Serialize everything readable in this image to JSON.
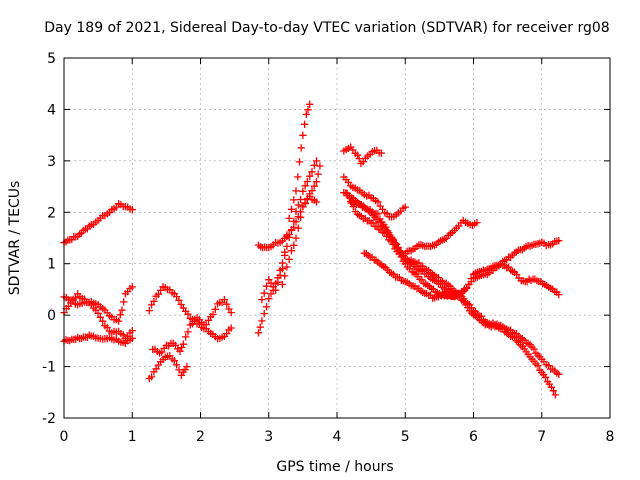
{
  "chart_data": {
    "type": "scatter",
    "title": "Day 189 of 2021, Sidereal Day-to-day VTEC variation (SDTVAR) for receiver rg08",
    "xlabel": "GPS time / hours",
    "ylabel": "SDTVAR / TECUs",
    "xlim": [
      0,
      8
    ],
    "ylim": [
      -2,
      5
    ],
    "xticks": [
      "0",
      "1",
      "2",
      "3",
      "4",
      "5",
      "6",
      "7",
      "8"
    ],
    "yticks": [
      "-2",
      "-1",
      "0",
      "1",
      "2",
      "3",
      "4",
      "5"
    ],
    "grid": true,
    "marker": "+",
    "color": "#ff0000",
    "series": [
      {
        "name": "s1",
        "points": [
          [
            0.0,
            1.4
          ],
          [
            0.2,
            1.55
          ],
          [
            0.4,
            1.75
          ],
          [
            0.5,
            1.85
          ],
          [
            0.6,
            1.95
          ],
          [
            0.7,
            2.05
          ],
          [
            0.8,
            2.15
          ],
          [
            0.9,
            2.1
          ],
          [
            1.0,
            2.05
          ]
        ]
      },
      {
        "name": "s2",
        "points": [
          [
            0.0,
            0.35
          ],
          [
            0.1,
            0.3
          ],
          [
            0.2,
            0.2
          ],
          [
            0.3,
            0.25
          ],
          [
            0.4,
            0.25
          ],
          [
            0.5,
            0.2
          ],
          [
            0.6,
            0.1
          ],
          [
            0.7,
            -0.05
          ],
          [
            0.8,
            -0.1
          ],
          [
            0.85,
            0.1
          ],
          [
            0.9,
            0.4
          ],
          [
            1.0,
            0.55
          ]
        ]
      },
      {
        "name": "s3",
        "points": [
          [
            0.0,
            0.05
          ],
          [
            0.1,
            0.25
          ],
          [
            0.2,
            0.4
          ],
          [
            0.3,
            0.3
          ],
          [
            0.4,
            0.2
          ],
          [
            0.5,
            0.05
          ],
          [
            0.6,
            -0.2
          ],
          [
            0.7,
            -0.35
          ],
          [
            0.8,
            -0.3
          ],
          [
            0.9,
            -0.45
          ],
          [
            1.0,
            -0.3
          ]
        ]
      },
      {
        "name": "s4",
        "points": [
          [
            0.0,
            -0.5
          ],
          [
            0.2,
            -0.45
          ],
          [
            0.4,
            -0.4
          ],
          [
            0.5,
            -0.45
          ],
          [
            0.6,
            -0.45
          ],
          [
            0.7,
            -0.45
          ],
          [
            0.8,
            -0.5
          ],
          [
            0.9,
            -0.55
          ],
          [
            1.0,
            -0.45
          ]
        ]
      },
      {
        "name": "s5",
        "points": [
          [
            1.25,
            0.1
          ],
          [
            1.35,
            0.35
          ],
          [
            1.45,
            0.55
          ],
          [
            1.55,
            0.5
          ],
          [
            1.65,
            0.35
          ],
          [
            1.75,
            0.15
          ],
          [
            1.85,
            -0.05
          ],
          [
            1.95,
            -0.15
          ],
          [
            2.05,
            -0.25
          ],
          [
            2.15,
            -0.05
          ],
          [
            2.25,
            0.2
          ],
          [
            2.35,
            0.3
          ],
          [
            2.45,
            0.05
          ]
        ]
      },
      {
        "name": "s6",
        "points": [
          [
            1.3,
            -0.65
          ],
          [
            1.4,
            -0.75
          ],
          [
            1.5,
            -0.6
          ],
          [
            1.6,
            -0.55
          ],
          [
            1.7,
            -0.7
          ],
          [
            1.75,
            -0.55
          ],
          [
            1.85,
            -0.2
          ],
          [
            1.95,
            -0.05
          ],
          [
            2.05,
            -0.2
          ],
          [
            2.15,
            -0.35
          ],
          [
            2.25,
            -0.45
          ],
          [
            2.35,
            -0.4
          ],
          [
            2.45,
            -0.25
          ]
        ]
      },
      {
        "name": "s7",
        "points": [
          [
            1.25,
            -1.25
          ],
          [
            1.35,
            -1.05
          ],
          [
            1.45,
            -0.85
          ],
          [
            1.55,
            -0.8
          ],
          [
            1.65,
            -0.95
          ],
          [
            1.72,
            -1.15
          ],
          [
            1.8,
            -1.0
          ]
        ]
      },
      {
        "name": "s8",
        "points": [
          [
            2.85,
            1.35
          ],
          [
            3.0,
            1.3
          ],
          [
            3.1,
            1.4
          ],
          [
            3.2,
            1.45
          ],
          [
            3.3,
            1.55
          ],
          [
            3.4,
            1.8
          ],
          [
            3.5,
            2.1
          ],
          [
            3.6,
            2.35
          ],
          [
            3.7,
            2.6
          ],
          [
            3.75,
            2.9
          ]
        ]
      },
      {
        "name": "s9",
        "points": [
          [
            2.85,
            -0.35
          ],
          [
            2.9,
            -0.1
          ],
          [
            3.0,
            0.3
          ],
          [
            3.1,
            0.6
          ],
          [
            3.2,
            1.0
          ],
          [
            3.3,
            1.5
          ],
          [
            3.4,
            2.0
          ],
          [
            3.5,
            2.4
          ],
          [
            3.6,
            2.7
          ],
          [
            3.7,
            3.0
          ]
        ]
      },
      {
        "name": "s10",
        "points": [
          [
            2.9,
            0.3
          ],
          [
            3.0,
            0.7
          ],
          [
            3.1,
            0.5
          ],
          [
            3.2,
            0.9
          ],
          [
            3.3,
            1.9
          ],
          [
            3.4,
            2.4
          ],
          [
            3.45,
            3.0
          ],
          [
            3.5,
            3.5
          ],
          [
            3.55,
            3.9
          ],
          [
            3.6,
            4.1
          ]
        ]
      },
      {
        "name": "s11",
        "points": [
          [
            3.2,
            0.6
          ],
          [
            3.3,
            1.1
          ],
          [
            3.4,
            1.5
          ],
          [
            3.5,
            2.1
          ],
          [
            3.6,
            2.3
          ],
          [
            3.7,
            2.2
          ]
        ]
      },
      {
        "name": "s12",
        "points": [
          [
            4.1,
            3.2
          ],
          [
            4.2,
            3.25
          ],
          [
            4.3,
            3.1
          ],
          [
            4.35,
            2.95
          ],
          [
            4.45,
            3.1
          ],
          [
            4.55,
            3.2
          ],
          [
            4.65,
            3.15
          ]
        ]
      },
      {
        "name": "s13",
        "points": [
          [
            4.1,
            2.7
          ],
          [
            4.2,
            2.5
          ],
          [
            4.3,
            2.45
          ],
          [
            4.4,
            2.35
          ],
          [
            4.5,
            2.3
          ],
          [
            4.6,
            2.2
          ],
          [
            4.7,
            2.0
          ],
          [
            4.8,
            1.9
          ],
          [
            4.9,
            2.0
          ],
          [
            5.0,
            2.1
          ]
        ]
      },
      {
        "name": "s14",
        "points": [
          [
            4.1,
            2.4
          ],
          [
            4.3,
            2.2
          ],
          [
            4.5,
            2.0
          ],
          [
            4.7,
            1.7
          ],
          [
            4.9,
            1.3
          ],
          [
            5.0,
            1.1
          ],
          [
            5.2,
            0.9
          ],
          [
            5.4,
            0.7
          ],
          [
            5.6,
            0.5
          ],
          [
            5.8,
            0.4
          ],
          [
            5.9,
            0.55
          ],
          [
            6.0,
            0.7
          ],
          [
            6.2,
            0.8
          ],
          [
            6.4,
            1.0
          ],
          [
            6.6,
            1.2
          ],
          [
            6.8,
            1.35
          ],
          [
            7.0,
            1.4
          ],
          [
            7.1,
            1.35
          ],
          [
            7.25,
            1.45
          ]
        ]
      },
      {
        "name": "s15",
        "points": [
          [
            4.15,
            2.35
          ],
          [
            4.3,
            1.95
          ],
          [
            4.5,
            1.8
          ],
          [
            4.7,
            1.6
          ],
          [
            4.85,
            1.3
          ],
          [
            5.0,
            1.0
          ],
          [
            5.1,
            0.85
          ],
          [
            5.3,
            0.6
          ],
          [
            5.5,
            0.4
          ],
          [
            5.7,
            0.35
          ],
          [
            5.9,
            0.5
          ],
          [
            6.0,
            0.8
          ],
          [
            6.2,
            0.9
          ],
          [
            6.4,
            1.0
          ],
          [
            6.6,
            0.85
          ],
          [
            6.7,
            0.65
          ],
          [
            6.9,
            0.7
          ],
          [
            7.1,
            0.55
          ],
          [
            7.25,
            0.4
          ]
        ]
      },
      {
        "name": "s16",
        "points": [
          [
            4.2,
            2.2
          ],
          [
            4.4,
            2.1
          ],
          [
            4.6,
            1.95
          ],
          [
            4.8,
            1.5
          ],
          [
            5.0,
            1.1
          ],
          [
            5.2,
            1.0
          ],
          [
            5.4,
            0.8
          ],
          [
            5.6,
            0.6
          ],
          [
            5.8,
            0.4
          ],
          [
            6.0,
            0.1
          ],
          [
            6.2,
            -0.15
          ],
          [
            6.4,
            -0.2
          ],
          [
            6.6,
            -0.35
          ],
          [
            6.8,
            -0.55
          ],
          [
            7.0,
            -0.85
          ],
          [
            7.1,
            -1.0
          ],
          [
            7.25,
            -1.15
          ]
        ]
      },
      {
        "name": "s17",
        "points": [
          [
            4.4,
            1.2
          ],
          [
            4.6,
            1.05
          ],
          [
            4.8,
            0.8
          ],
          [
            5.0,
            0.65
          ],
          [
            5.2,
            0.5
          ],
          [
            5.4,
            0.35
          ],
          [
            5.6,
            0.4
          ],
          [
            5.8,
            0.35
          ],
          [
            6.0,
            0.0
          ],
          [
            6.2,
            -0.2
          ],
          [
            6.4,
            -0.25
          ],
          [
            6.6,
            -0.45
          ],
          [
            6.8,
            -0.75
          ],
          [
            7.0,
            -1.1
          ],
          [
            7.2,
            -1.55
          ]
        ]
      },
      {
        "name": "s18",
        "points": [
          [
            5.0,
            1.2
          ],
          [
            5.2,
            1.35
          ],
          [
            5.4,
            1.35
          ],
          [
            5.6,
            1.5
          ],
          [
            5.75,
            1.7
          ],
          [
            5.85,
            1.85
          ],
          [
            5.95,
            1.75
          ],
          [
            6.05,
            1.8
          ]
        ]
      }
    ]
  }
}
